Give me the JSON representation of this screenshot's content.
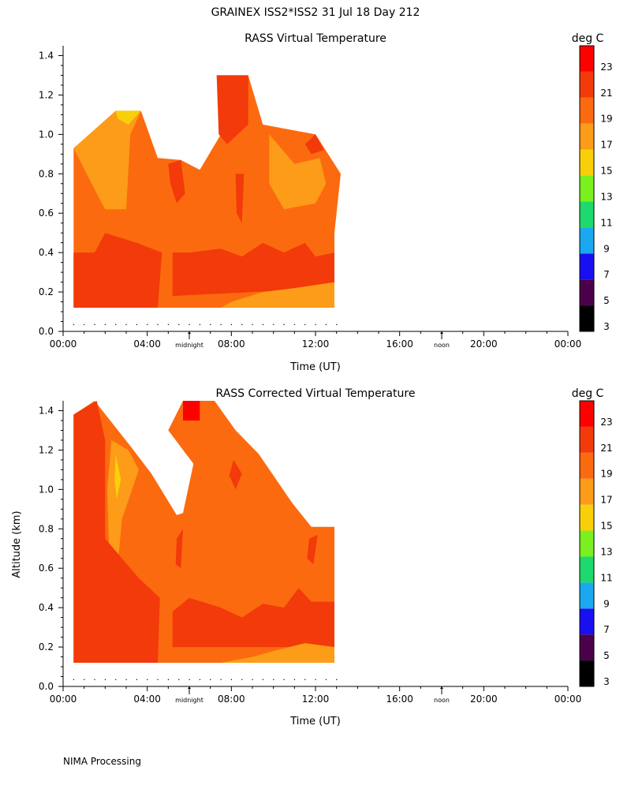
{
  "page_title": "GRAINEX ISS2*ISS2  31 Jul 18 Day 212",
  "footer_note": "NIMA Processing",
  "chart_data": [
    {
      "type": "heatmap",
      "title": "RASS Virtual Temperature",
      "xlabel": "Time (UT)",
      "ylabel": "",
      "xlim": [
        0,
        24
      ],
      "ylim": [
        0,
        1.45
      ],
      "x_tick_labels": [
        "00:00",
        "04:00",
        "08:00",
        "12:00",
        "16:00",
        "20:00",
        "00:00"
      ],
      "y_tick_labels": [
        "0.0",
        "0.2",
        "0.4",
        "0.6",
        "0.8",
        "1.0",
        "1.2",
        "1.4"
      ],
      "markers": [
        {
          "label": "midnight",
          "x": 6
        },
        {
          "label": "noon",
          "x": 18
        }
      ],
      "colorbar": {
        "unit": "deg C",
        "tick_labels": [
          "3",
          "5",
          "7",
          "9",
          "11",
          "13",
          "15",
          "17",
          "19",
          "21",
          "23"
        ],
        "colors": [
          "#000000",
          "#4b004b",
          "#1a0ff0",
          "#1aa9f0",
          "#1ed96b",
          "#7af01f",
          "#f8d00a",
          "#fc9c18",
          "#fc6a0f",
          "#f23a0a",
          "#ff0000"
        ]
      },
      "regions": [
        {
          "temp": 19,
          "points": [
            [
              0.5,
              0.12
            ],
            [
              12.9,
              0.12
            ],
            [
              12.9,
              0.5
            ],
            [
              13.2,
              0.8
            ],
            [
              12,
              1.0
            ],
            [
              9.5,
              1.05
            ],
            [
              8.8,
              1.3
            ],
            [
              7.3,
              1.3
            ],
            [
              7.5,
              1.0
            ],
            [
              6.5,
              0.82
            ],
            [
              5.6,
              0.87
            ],
            [
              4.5,
              0.88
            ],
            [
              3.7,
              1.12
            ],
            [
              0.5,
              0.93
            ]
          ]
        },
        {
          "temp": 17,
          "points": [
            [
              0.5,
              0.93
            ],
            [
              2.5,
              1.12
            ],
            [
              3.7,
              1.12
            ],
            [
              3.2,
              1.0
            ],
            [
              3.0,
              0.62
            ],
            [
              2.0,
              0.62
            ],
            [
              1.5,
              0.72
            ]
          ]
        },
        {
          "temp": 15,
          "points": [
            [
              2.5,
              1.12
            ],
            [
              3.7,
              1.12
            ],
            [
              3.1,
              1.05
            ],
            [
              2.6,
              1.08
            ]
          ]
        },
        {
          "temp": 17,
          "points": [
            [
              9.8,
              1.0
            ],
            [
              11.0,
              0.85
            ],
            [
              12.2,
              0.88
            ],
            [
              12.5,
              0.75
            ],
            [
              12.0,
              0.65
            ],
            [
              10.5,
              0.62
            ],
            [
              9.8,
              0.75
            ]
          ]
        },
        {
          "temp": 21,
          "points": [
            [
              0.5,
              0.12
            ],
            [
              4.5,
              0.12
            ],
            [
              4.7,
              0.4
            ],
            [
              3.5,
              0.45
            ],
            [
              2.0,
              0.5
            ],
            [
              1.5,
              0.4
            ],
            [
              0.5,
              0.4
            ]
          ]
        },
        {
          "temp": 21,
          "points": [
            [
              5.2,
              0.18
            ],
            [
              12.9,
              0.22
            ],
            [
              12.9,
              0.4
            ],
            [
              12,
              0.38
            ],
            [
              11.5,
              0.45
            ],
            [
              10.5,
              0.4
            ],
            [
              9.5,
              0.45
            ],
            [
              8.5,
              0.38
            ],
            [
              7.5,
              0.42
            ],
            [
              6.0,
              0.4
            ],
            [
              5.2,
              0.4
            ]
          ]
        },
        {
          "temp": 17,
          "points": [
            [
              7.5,
              0.12
            ],
            [
              12.9,
              0.12
            ],
            [
              12.9,
              0.25
            ],
            [
              11,
              0.22
            ],
            [
              9.5,
              0.2
            ],
            [
              8.0,
              0.15
            ]
          ]
        },
        {
          "temp": 21,
          "points": [
            [
              7.3,
              1.3
            ],
            [
              8.8,
              1.3
            ],
            [
              8.8,
              1.05
            ],
            [
              7.8,
              0.95
            ],
            [
              7.4,
              1.0
            ]
          ]
        },
        {
          "temp": 21,
          "points": [
            [
              11.5,
              0.95
            ],
            [
              12.0,
              1.0
            ],
            [
              12.4,
              0.92
            ],
            [
              11.8,
              0.9
            ]
          ]
        },
        {
          "temp": 21,
          "points": [
            [
              5.0,
              0.85
            ],
            [
              5.6,
              0.87
            ],
            [
              5.8,
              0.7
            ],
            [
              5.4,
              0.65
            ],
            [
              5.1,
              0.75
            ]
          ]
        },
        {
          "temp": 21,
          "points": [
            [
              8.2,
              0.8
            ],
            [
              8.6,
              0.8
            ],
            [
              8.5,
              0.55
            ],
            [
              8.25,
              0.6
            ]
          ]
        }
      ]
    },
    {
      "type": "heatmap",
      "title": "RASS Corrected Virtual Temperature",
      "xlabel": "Time (UT)",
      "ylabel": "Altitude (km)",
      "xlim": [
        0,
        24
      ],
      "ylim": [
        0,
        1.45
      ],
      "x_tick_labels": [
        "00:00",
        "04:00",
        "08:00",
        "12:00",
        "16:00",
        "20:00",
        "00:00"
      ],
      "y_tick_labels": [
        "0.0",
        "0.2",
        "0.4",
        "0.6",
        "0.8",
        "1.0",
        "1.2",
        "1.4"
      ],
      "markers": [
        {
          "label": "midnight",
          "x": 6
        },
        {
          "label": "noon",
          "x": 18
        }
      ],
      "colorbar": {
        "unit": "deg C",
        "tick_labels": [
          "3",
          "5",
          "7",
          "9",
          "11",
          "13",
          "15",
          "17",
          "19",
          "21",
          "23"
        ],
        "colors": [
          "#000000",
          "#4b004b",
          "#1a0ff0",
          "#1aa9f0",
          "#1ed96b",
          "#7af01f",
          "#f8d00a",
          "#fc9c18",
          "#fc6a0f",
          "#f23a0a",
          "#ff0000"
        ]
      },
      "regions": [
        {
          "temp": 19,
          "points": [
            [
              0.5,
              0.12
            ],
            [
              12.9,
              0.12
            ],
            [
              12.9,
              0.81
            ],
            [
              11.8,
              0.81
            ],
            [
              10.9,
              0.93
            ],
            [
              9.3,
              1.18
            ],
            [
              8.2,
              1.3
            ],
            [
              7.2,
              1.45
            ],
            [
              5.7,
              1.45
            ],
            [
              5.0,
              1.3
            ],
            [
              6.2,
              1.13
            ],
            [
              5.7,
              0.88
            ],
            [
              5.4,
              0.87
            ],
            [
              4.2,
              1.08
            ],
            [
              3.2,
              1.22
            ],
            [
              1.5,
              1.45
            ],
            [
              0.5,
              1.38
            ]
          ]
        },
        {
          "temp": 17,
          "points": [
            [
              2.3,
              1.25
            ],
            [
              3.1,
              1.2
            ],
            [
              3.6,
              1.1
            ],
            [
              2.8,
              0.85
            ],
            [
              2.6,
              0.62
            ],
            [
              2.2,
              0.65
            ],
            [
              2.1,
              1.0
            ]
          ]
        },
        {
          "temp": 15,
          "points": [
            [
              2.5,
              1.18
            ],
            [
              2.75,
              1.05
            ],
            [
              2.55,
              0.95
            ],
            [
              2.45,
              1.05
            ]
          ]
        },
        {
          "temp": 21,
          "points": [
            [
              0.5,
              0.12
            ],
            [
              4.5,
              0.12
            ],
            [
              4.6,
              0.45
            ],
            [
              3.6,
              0.55
            ],
            [
              2.8,
              0.65
            ],
            [
              2.0,
              0.75
            ],
            [
              2.0,
              1.25
            ],
            [
              1.6,
              1.45
            ],
            [
              0.5,
              1.38
            ]
          ]
        },
        {
          "temp": 21,
          "points": [
            [
              5.2,
              0.2
            ],
            [
              12.9,
              0.2
            ],
            [
              12.9,
              0.43
            ],
            [
              11.8,
              0.43
            ],
            [
              11.2,
              0.5
            ],
            [
              10.5,
              0.4
            ],
            [
              9.5,
              0.42
            ],
            [
              8.5,
              0.35
            ],
            [
              7.5,
              0.4
            ],
            [
              6.0,
              0.45
            ],
            [
              5.2,
              0.38
            ]
          ]
        },
        {
          "temp": 17,
          "points": [
            [
              7.5,
              0.12
            ],
            [
              12.9,
              0.12
            ],
            [
              12.9,
              0.2
            ],
            [
              11.5,
              0.22
            ],
            [
              10,
              0.18
            ],
            [
              9,
              0.15
            ]
          ]
        },
        {
          "temp": 23,
          "points": [
            [
              5.7,
              1.45
            ],
            [
              6.5,
              1.45
            ],
            [
              6.5,
              1.35
            ],
            [
              5.7,
              1.35
            ]
          ]
        },
        {
          "temp": 21,
          "points": [
            [
              8.1,
              1.15
            ],
            [
              8.5,
              1.08
            ],
            [
              8.2,
              1.0
            ],
            [
              7.9,
              1.07
            ]
          ]
        },
        {
          "temp": 21,
          "points": [
            [
              11.7,
              0.75
            ],
            [
              12.1,
              0.77
            ],
            [
              11.9,
              0.62
            ],
            [
              11.6,
              0.65
            ]
          ]
        },
        {
          "temp": 21,
          "points": [
            [
              5.4,
              0.75
            ],
            [
              5.7,
              0.8
            ],
            [
              5.6,
              0.6
            ],
            [
              5.35,
              0.62
            ]
          ]
        }
      ]
    }
  ]
}
